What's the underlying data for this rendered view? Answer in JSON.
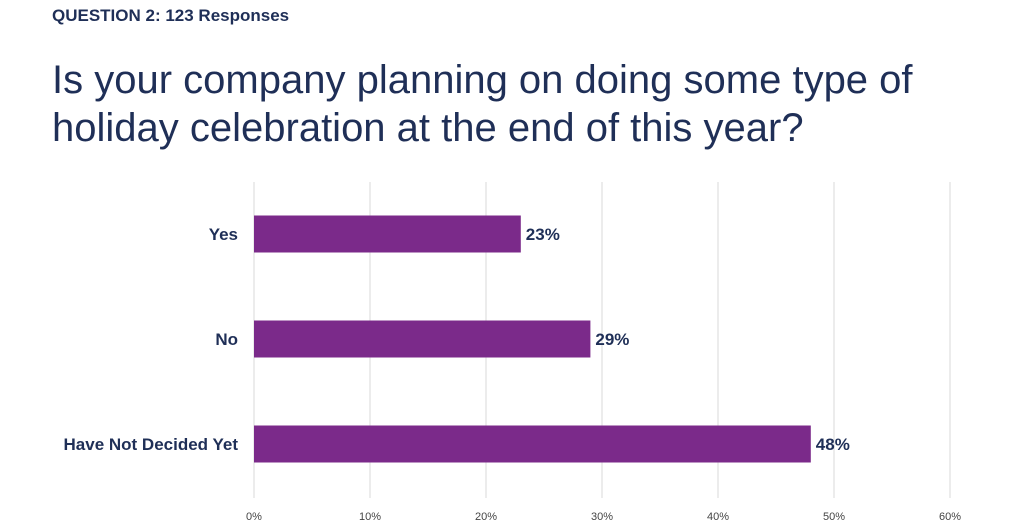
{
  "header": {
    "question": "QUESTION 2: 123 Responses",
    "title_line1": "Is your company planning on doing some type of",
    "title_line2": "holiday celebration at the end of this year?"
  },
  "colors": {
    "bar": "#7b2a8a",
    "text": "#1f2f57",
    "grid": "#d9d9d9"
  },
  "chart_data": {
    "type": "bar",
    "orientation": "horizontal",
    "categories": [
      "Yes",
      "No",
      "Have Not Decided Yet"
    ],
    "values": [
      23,
      29,
      48
    ],
    "value_labels": [
      "23%",
      "29%",
      "48%"
    ],
    "xlim": [
      0,
      60
    ],
    "xticks": [
      0,
      10,
      20,
      30,
      40,
      50,
      60
    ],
    "xtick_labels": [
      "0%",
      "10%",
      "20%",
      "30%",
      "40%",
      "50%",
      "60%"
    ],
    "grid": true,
    "legend": false
  }
}
